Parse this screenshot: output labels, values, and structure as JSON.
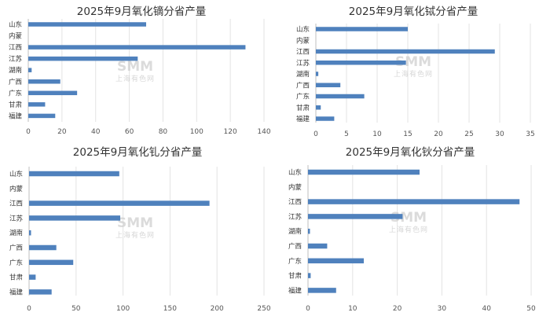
{
  "watermark": {
    "logo": "SMM",
    "text": "上海有色网"
  },
  "chart_data": [
    {
      "type": "bar",
      "orientation": "horizontal",
      "title": "2025年9月氧化镝分省产量",
      "categories": [
        "山东",
        "内蒙",
        "江西",
        "江苏",
        "湖南",
        "广西",
        "广东",
        "甘肃",
        "福建"
      ],
      "values": [
        70,
        0,
        129,
        65,
        2,
        19,
        29,
        10,
        16
      ],
      "xlim": [
        0,
        140
      ],
      "xticks": [
        "0",
        "20",
        "40",
        "60",
        "80",
        "100",
        "120",
        "140"
      ],
      "grid": true,
      "color": "#4f81bd"
    },
    {
      "type": "bar",
      "orientation": "horizontal",
      "title": "2025年9月氧化铽分省产量",
      "categories": [
        "山东",
        "内蒙",
        "江西",
        "江苏",
        "湖南",
        "广西",
        "广东",
        "甘肃",
        "福建"
      ],
      "values": [
        15,
        0,
        29.2,
        14.7,
        0.4,
        4,
        7.9,
        0.8,
        3
      ],
      "xlim": [
        0,
        35
      ],
      "xticks": [
        "0",
        "5",
        "10",
        "15",
        "20",
        "25",
        "30",
        "35"
      ],
      "grid": true,
      "color": "#4f81bd"
    },
    {
      "type": "bar",
      "orientation": "horizontal",
      "title": "2025年9月氧化钆分省产量",
      "categories": [
        "山东",
        "内蒙",
        "江西",
        "江苏",
        "湖南",
        "广西",
        "广东",
        "甘肃",
        "福建"
      ],
      "values": [
        96,
        0,
        192,
        97,
        2,
        29,
        47,
        7,
        24
      ],
      "xlim": [
        0,
        250
      ],
      "xticks": [
        "0",
        "50",
        "100",
        "150",
        "200",
        "250"
      ],
      "grid": true,
      "color": "#4f81bd"
    },
    {
      "type": "bar",
      "orientation": "horizontal",
      "title": "2025年9月氧化钬分省产量",
      "categories": [
        "山东",
        "内蒙",
        "江西",
        "江苏",
        "湖南",
        "广西",
        "广东",
        "甘肃",
        "福建"
      ],
      "values": [
        25,
        0,
        47.4,
        21.2,
        0.3,
        4.3,
        12.5,
        0.6,
        6.3
      ],
      "xlim": [
        0,
        50
      ],
      "xticks": [
        "0",
        "10",
        "20",
        "30",
        "40",
        "50"
      ],
      "grid": true,
      "color": "#4f81bd"
    }
  ]
}
